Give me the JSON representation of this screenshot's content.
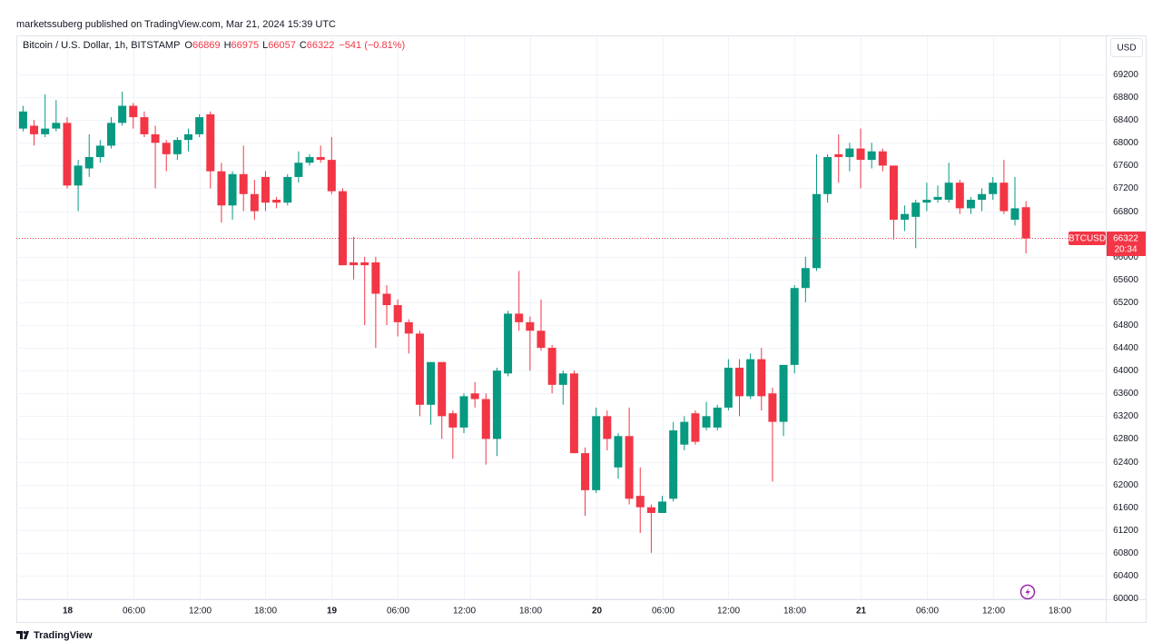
{
  "chart_data": {
    "type": "candlestick",
    "publisher": "marketssuberg published on TradingView.com, Mar 21, 2024 15:39 UTC",
    "title": "Bitcoin / U.S. Dollar, 1h, BITSTAMP",
    "ohlc_letters": [
      "O",
      "H",
      "L",
      "C"
    ],
    "change": "−541 (−0.81%)",
    "currency": "USD",
    "symbol": "BTCUSD",
    "countdown": "20:34",
    "brand": "TradingView",
    "up_color": "#089981",
    "down_color": "#f23645",
    "grid": true,
    "ylim": [
      59985,
      69870
    ],
    "yticks": [
      60000,
      60400,
      60800,
      61200,
      61600,
      62000,
      62400,
      62800,
      63200,
      63600,
      64000,
      64400,
      64800,
      65200,
      65600,
      66000,
      66800,
      67200,
      67600,
      68000,
      68400,
      68800,
      69200
    ],
    "categories": [
      null,
      null,
      null,
      null,
      "18",
      null,
      null,
      null,
      null,
      null,
      "06:00",
      null,
      null,
      null,
      null,
      null,
      "12:00",
      null,
      null,
      null,
      null,
      null,
      "18:00",
      null,
      null,
      null,
      null,
      null,
      "19",
      null,
      null,
      null,
      null,
      null,
      "06:00",
      null,
      null,
      null,
      null,
      null,
      "12:00",
      null,
      null,
      null,
      null,
      null,
      "18:00",
      null,
      null,
      null,
      null,
      null,
      "20",
      null,
      null,
      null,
      null,
      null,
      "06:00",
      null,
      null,
      null,
      null,
      null,
      "12:00",
      null,
      null,
      null,
      null,
      null,
      "18:00",
      null,
      null,
      null,
      null,
      null,
      "21",
      null,
      null,
      null,
      null,
      null,
      "06:00",
      null,
      null,
      null,
      null,
      null,
      "12:00",
      null,
      null,
      null,
      null,
      null,
      "18:00",
      null,
      null,
      null,
      null
    ],
    "open": [
      68250,
      68300,
      68150,
      68250,
      68350,
      67250,
      67550,
      67750,
      67950,
      68350,
      68650,
      68450,
      68150,
      68000,
      67800,
      68050,
      68150,
      68500,
      67500,
      66900,
      67450,
      67100,
      67400,
      67000,
      66950,
      67400,
      67650,
      67750,
      67700,
      67150,
      65900,
      65900,
      65900,
      65350,
      65150,
      64850,
      64650,
      63400,
      64150,
      63250,
      63000,
      63600,
      63500,
      62800,
      63950,
      65000,
      64850,
      64700,
      64400,
      63750,
      63950,
      62550,
      61900,
      63200,
      62300,
      62850,
      61800,
      61600,
      61500,
      61750,
      62700,
      63250,
      63000,
      63000,
      63350,
      64050,
      63550,
      64200,
      63600,
      63100,
      64100,
      65450,
      65800,
      67100,
      67800,
      67750,
      67900,
      67700,
      67850,
      67600,
      66650,
      66700,
      66950,
      67000,
      67000,
      67300,
      66850,
      67000,
      67100,
      67300,
      66650,
      66869,
      null,
      null,
      null,
      null,
      null,
      null,
      null
    ],
    "high": [
      68650,
      68400,
      68850,
      68750,
      68450,
      67700,
      68150,
      68050,
      68450,
      68900,
      68700,
      68550,
      68300,
      68050,
      68100,
      68250,
      68500,
      68550,
      67650,
      67500,
      67950,
      67350,
      67500,
      67050,
      67450,
      67850,
      67800,
      67950,
      68100,
      67200,
      66350,
      66000,
      66000,
      65500,
      65250,
      64900,
      64700,
      64150,
      64150,
      63300,
      63600,
      63800,
      63600,
      64050,
      65050,
      65750,
      64950,
      65250,
      64450,
      64000,
      64000,
      62650,
      63350,
      63300,
      62900,
      63350,
      62300,
      61650,
      61800,
      63100,
      63200,
      63300,
      63450,
      63400,
      64200,
      64200,
      64300,
      64400,
      63700,
      64100,
      65500,
      66000,
      67800,
      67800,
      68150,
      68000,
      68250,
      68000,
      67900,
      67600,
      66900,
      67000,
      67300,
      67250,
      67650,
      67350,
      67050,
      67200,
      67400,
      67700,
      67400,
      66975,
      null,
      null,
      null,
      null,
      null,
      null,
      null
    ],
    "low": [
      68200,
      67950,
      68100,
      68200,
      67200,
      66800,
      67400,
      67650,
      67900,
      68300,
      68250,
      68100,
      67200,
      67500,
      67700,
      67850,
      68100,
      67200,
      66600,
      66650,
      66800,
      66650,
      66800,
      66850,
      66900,
      67300,
      67600,
      67650,
      67100,
      65850,
      65600,
      64800,
      64400,
      64800,
      64600,
      64300,
      63200,
      63050,
      62800,
      62450,
      62900,
      63350,
      62350,
      62500,
      63900,
      64700,
      64000,
      64350,
      63600,
      63400,
      62550,
      61450,
      61850,
      62600,
      62100,
      61650,
      61150,
      60800,
      61500,
      61700,
      62600,
      62700,
      62950,
      62950,
      63300,
      63200,
      63500,
      63300,
      62050,
      62850,
      63950,
      65200,
      65750,
      66950,
      67300,
      67500,
      67200,
      67550,
      67500,
      66300,
      66450,
      66150,
      66800,
      66950,
      66950,
      66750,
      66750,
      66800,
      67000,
      66750,
      66550,
      66057,
      null,
      null,
      null,
      null,
      null,
      null,
      null
    ],
    "close": [
      68550,
      68150,
      68250,
      68350,
      67250,
      67600,
      67750,
      67950,
      68350,
      68650,
      68450,
      68150,
      68000,
      67800,
      68050,
      68150,
      68450,
      67500,
      66900,
      67450,
      67100,
      66800,
      66950,
      66950,
      67400,
      67650,
      67750,
      67700,
      67150,
      65850,
      65850,
      65850,
      65350,
      65150,
      64850,
      64650,
      63400,
      64150,
      63200,
      63000,
      63550,
      63500,
      62800,
      64000,
      65000,
      64850,
      64700,
      64400,
      63750,
      63950,
      62550,
      61900,
      63200,
      62800,
      62850,
      61750,
      61600,
      61500,
      61700,
      62950,
      63100,
      62750,
      63200,
      63350,
      64050,
      63550,
      64200,
      63550,
      63100,
      64100,
      65450,
      65800,
      67100,
      67750,
      67750,
      67900,
      67700,
      67850,
      67600,
      66650,
      66750,
      66950,
      67000,
      67050,
      67300,
      66850,
      67000,
      67100,
      67300,
      66800,
      66850,
      66322,
      null,
      null,
      null,
      null,
      null,
      null,
      null
    ]
  }
}
